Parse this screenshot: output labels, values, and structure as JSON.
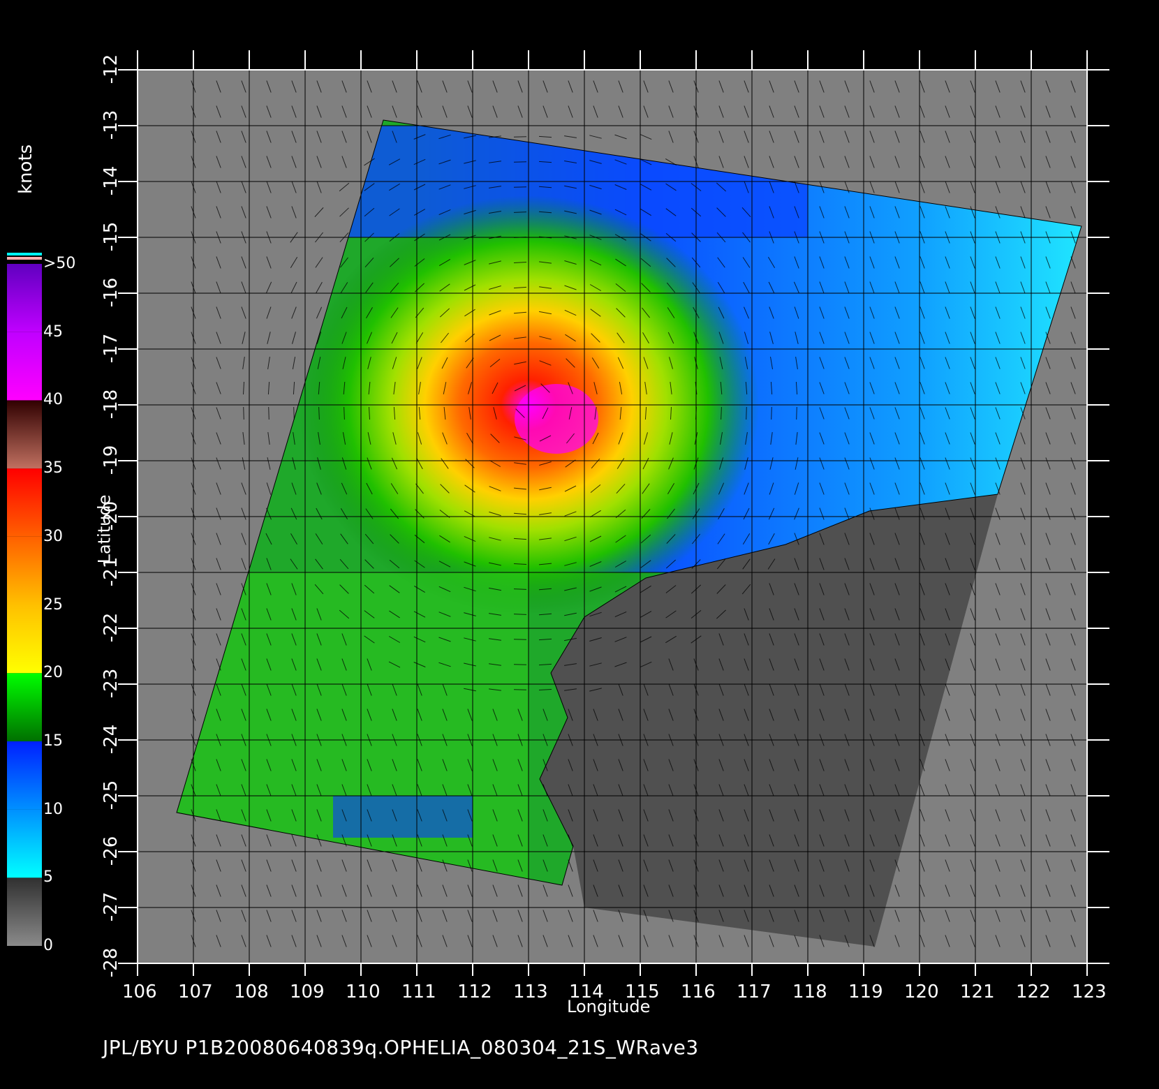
{
  "map": {
    "x_axis_title": "Longitude",
    "y_axis_title": "Latitude",
    "lon_ticks": [
      "106",
      "107",
      "108",
      "109",
      "110",
      "111",
      "112",
      "113",
      "114",
      "115",
      "116",
      "117",
      "118",
      "119",
      "120",
      "121",
      "122",
      "123"
    ],
    "lat_ticks": [
      "-12",
      "-13",
      "-14",
      "-15",
      "-16",
      "-17",
      "-18",
      "-19",
      "-20",
      "-21",
      "-22",
      "-23",
      "-24",
      "-25",
      "-26",
      "-27",
      "-28"
    ],
    "lon_range": [
      106,
      123
    ],
    "lat_range": [
      -12,
      -28
    ],
    "grid": true,
    "land_color": "#505050",
    "no_data_color": "#808080",
    "cyclone_center": {
      "lon": 113.0,
      "lat": -18.0
    }
  },
  "colorbar": {
    "title": "knots",
    "labels": [
      ">50",
      "45",
      "40",
      "35",
      "30",
      "25",
      "20",
      "15",
      "10",
      "5",
      "0"
    ],
    "stops": [
      {
        "value": 0,
        "color": "#8a8a8a"
      },
      {
        "value": 5,
        "color": "#303030"
      },
      {
        "value": 5,
        "color": "#00ffff"
      },
      {
        "value": 10,
        "color": "#0090ff"
      },
      {
        "value": 15,
        "color": "#0020ff"
      },
      {
        "value": 15,
        "color": "#007000"
      },
      {
        "value": 20,
        "color": "#00ff00"
      },
      {
        "value": 20,
        "color": "#ffff00"
      },
      {
        "value": 25,
        "color": "#ffc000"
      },
      {
        "value": 30,
        "color": "#ff6000"
      },
      {
        "value": 35,
        "color": "#ff0000"
      },
      {
        "value": 35,
        "color": "#c07060"
      },
      {
        "value": 40,
        "color": "#300000"
      },
      {
        "value": 40,
        "color": "#ff00ff"
      },
      {
        "value": 45,
        "color": "#c000ff"
      },
      {
        "value": 50,
        "color": "#6000c0"
      }
    ]
  },
  "footer": "JPL/BYU  P1B20080640839q.OPHELIA_080304_21S_WRave3"
}
